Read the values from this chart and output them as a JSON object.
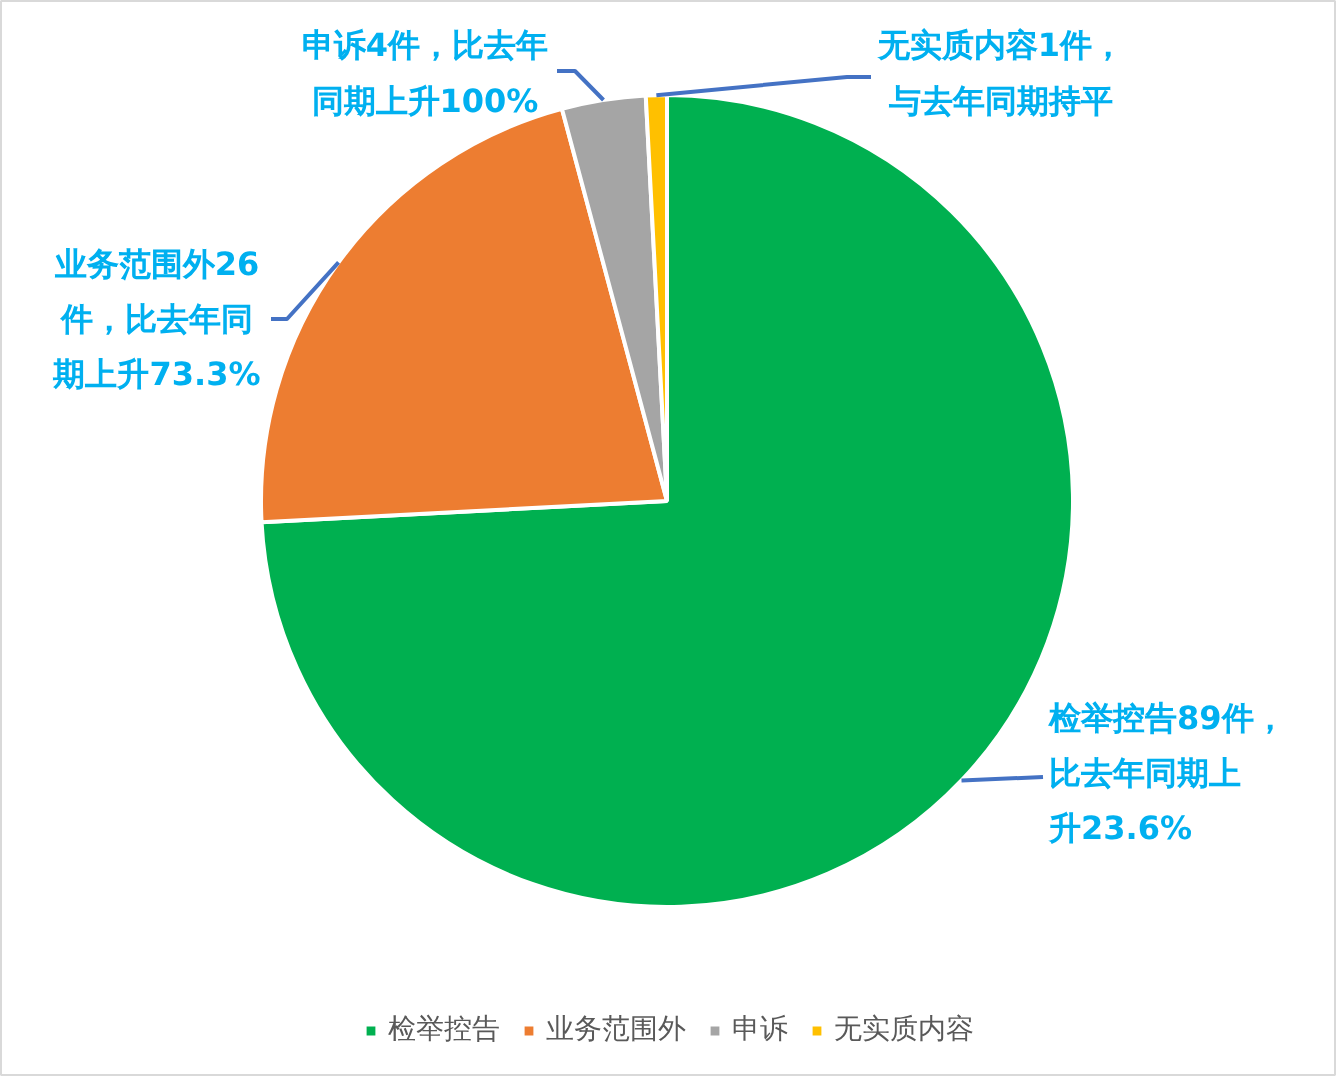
{
  "chart_data": {
    "type": "pie",
    "categories": [
      "检举控告",
      "业务范围外",
      "申诉",
      "无实质内容"
    ],
    "values": [
      89,
      26,
      4,
      1
    ],
    "colors": [
      "#00b050",
      "#ed7d31",
      "#a5a5a5",
      "#ffc000"
    ],
    "value_labels": [
      "检举控告89件，比去年同期上升23.6%",
      "业务范围外26件，比去年同期上升73.3%",
      "申诉4件，比去年同期上升100%",
      "无实质内容1件，与去年同期持平"
    ],
    "legend": "bottom"
  }
}
